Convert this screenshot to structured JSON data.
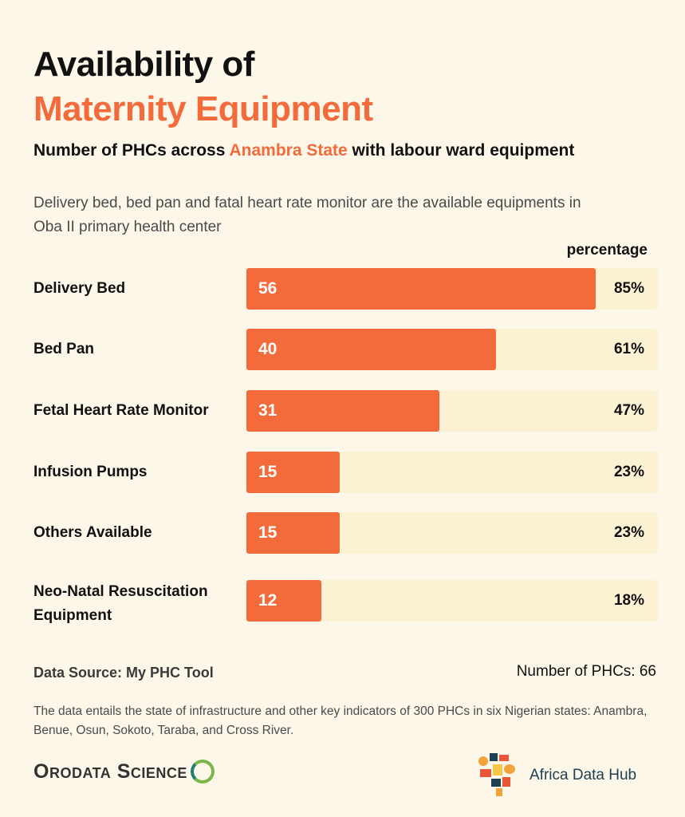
{
  "header": {
    "title_line1": "Availability of",
    "title_line2": "Maternity Equipment",
    "subtitle_prefix": "Number of  PHCs across ",
    "subtitle_accent": "Anambra State",
    "subtitle_suffix": " with labour ward equipment",
    "note": "Delivery bed, bed pan and fatal heart rate monitor are the available equipments in Oba II primary health center"
  },
  "chart_data": {
    "type": "bar",
    "orientation": "horizontal",
    "value_column_label": "percentage",
    "categories": [
      "Delivery Bed",
      "Bed Pan",
      "Fetal Heart Rate Monitor",
      "Infusion Pumps",
      "Others Available",
      "Neo-Natal Resuscitation Equipment"
    ],
    "values": [
      56,
      40,
      31,
      15,
      15,
      12
    ],
    "percent_labels": [
      "85%",
      "61%",
      "47%",
      "23%",
      "23%",
      "18%"
    ],
    "xlim": [
      0,
      66
    ],
    "grid": false,
    "legend": "none"
  },
  "footer": {
    "source": "Data Source: My PHC Tool",
    "total": "Number of PHCs: 66",
    "footnote": "The data entails the state of infrastructure and other key indicators of 300 PHCs in six Nigerian states: Anambra, Benue, Osun, Sokoto, Taraba, and Cross River.",
    "logo_left": "Orodata Science",
    "logo_right": "Africa Data Hub"
  },
  "colors": {
    "accent": "#f36b3b",
    "track": "#fbf1d3",
    "background": "#fdf7e9"
  }
}
